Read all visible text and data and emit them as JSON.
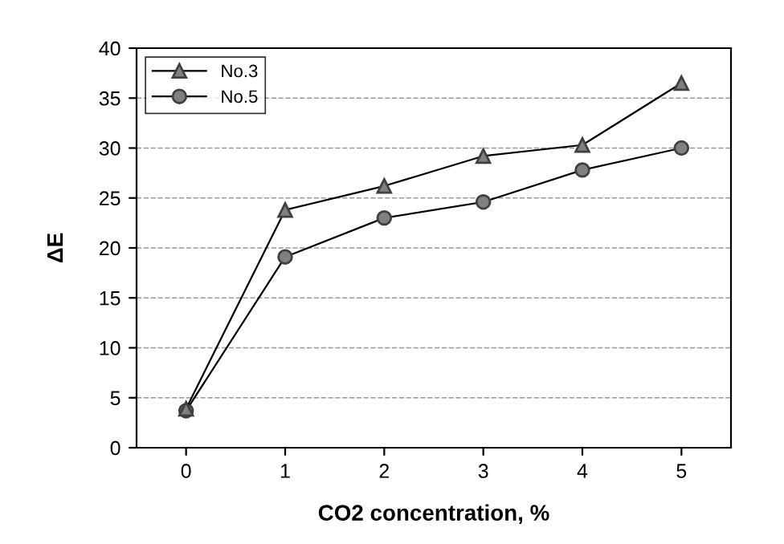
{
  "chart_data": {
    "type": "line",
    "xlabel": "CO2 concentration, %",
    "ylabel": "ΔE",
    "categories": [
      "0",
      "1",
      "2",
      "3",
      "4",
      "5"
    ],
    "series": [
      {
        "name": "No.3",
        "color": "#808080",
        "marker": "triangle",
        "values": [
          3.9,
          23.8,
          26.2,
          29.2,
          30.3,
          36.5
        ]
      },
      {
        "name": "No.5",
        "color": "#808080",
        "marker": "circle",
        "values": [
          3.7,
          19.1,
          23.0,
          24.6,
          27.8,
          30.0
        ]
      }
    ],
    "ylim": [
      0,
      40
    ],
    "yticks": [
      0,
      5,
      10,
      15,
      20,
      25,
      30,
      35,
      40
    ],
    "grid": "y",
    "legend": "top left",
    "line_style": "solid"
  }
}
